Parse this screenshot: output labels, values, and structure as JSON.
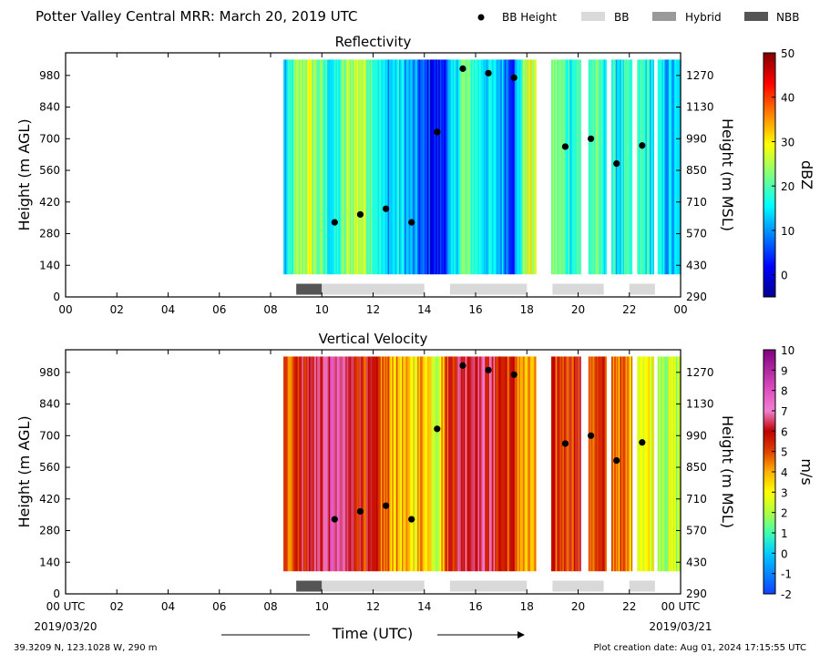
{
  "header": {
    "title": "Potter Valley Central MRR:  March 20, 2019 UTC",
    "legend": [
      {
        "label": "BB Height",
        "kind": "dot",
        "color": "#000000"
      },
      {
        "label": "BB",
        "kind": "swatch",
        "color": "#d9d9d9"
      },
      {
        "label": "Hybrid",
        "kind": "swatch",
        "color": "#999999"
      },
      {
        "label": "NBB",
        "kind": "swatch",
        "color": "#555555"
      }
    ]
  },
  "footer": {
    "xlabel": "Time (UTC)",
    "left_text": "39.3209 N, 123.1028 W, 290 m",
    "right_text": "Plot creation date: Aug 01, 2024 17:15:55 UTC",
    "start_date": "2019/03/20",
    "end_date": "2019/03/21"
  },
  "chart_data": [
    {
      "type": "heatmap",
      "title": "Reflectivity",
      "ylabel": "Height (m AGL)",
      "ylabel_right": "Height (m MSL)",
      "colorbar_label": "dBZ",
      "colorbar_ticks": [
        "0",
        "10",
        "20",
        "30",
        "40",
        "50"
      ],
      "clim": [
        -5,
        50
      ],
      "colormap": "jet",
      "xlim": [
        0,
        24
      ],
      "ylim": [
        0,
        1080
      ],
      "xticks": [
        "00",
        "02",
        "04",
        "06",
        "08",
        "10",
        "12",
        "14",
        "16",
        "18",
        "20",
        "22",
        "00"
      ],
      "yticks": [
        0,
        140,
        280,
        420,
        560,
        700,
        840,
        980
      ],
      "yticks_right": [
        290,
        430,
        570,
        710,
        850,
        990,
        1130,
        1270
      ],
      "data_height_range": [
        100,
        1050
      ],
      "data_segments": [
        [
          8.5,
          18.35
        ],
        [
          18.95,
          20.1
        ],
        [
          20.4,
          21.1
        ],
        [
          21.3,
          22.1
        ],
        [
          22.3,
          22.95
        ],
        [
          23.1,
          24
        ]
      ],
      "column_values": [
        {
          "t": 8.6,
          "v": 12
        },
        {
          "t": 9.0,
          "v": 22
        },
        {
          "t": 9.5,
          "v": 27
        },
        {
          "t": 10.0,
          "v": 20
        },
        {
          "t": 10.5,
          "v": 14
        },
        {
          "t": 11.0,
          "v": 24
        },
        {
          "t": 11.5,
          "v": 27
        },
        {
          "t": 12.0,
          "v": 21
        },
        {
          "t": 12.5,
          "v": 12
        },
        {
          "t": 13.0,
          "v": 15
        },
        {
          "t": 13.5,
          "v": 10
        },
        {
          "t": 14.0,
          "v": 5
        },
        {
          "t": 14.5,
          "v": 1
        },
        {
          "t": 14.95,
          "v": 8
        },
        {
          "t": 15.5,
          "v": 22
        },
        {
          "t": 16.0,
          "v": 18
        },
        {
          "t": 16.5,
          "v": 14
        },
        {
          "t": 17.0,
          "v": 12
        },
        {
          "t": 17.5,
          "v": 6
        },
        {
          "t": 18.0,
          "v": 28
        },
        {
          "t": 19.2,
          "v": 22
        },
        {
          "t": 19.7,
          "v": 18
        },
        {
          "t": 20.6,
          "v": 20
        },
        {
          "t": 21.5,
          "v": 15
        },
        {
          "t": 22.5,
          "v": 18
        },
        {
          "t": 23.5,
          "v": 12
        }
      ],
      "bb_height": [
        {
          "x": 10.5,
          "y": 330
        },
        {
          "x": 11.5,
          "y": 365
        },
        {
          "x": 12.5,
          "y": 390
        },
        {
          "x": 13.5,
          "y": 330
        },
        {
          "x": 14.5,
          "y": 730
        },
        {
          "x": 15.5,
          "y": 1010
        },
        {
          "x": 16.5,
          "y": 990
        },
        {
          "x": 17.5,
          "y": 970
        },
        {
          "x": 19.5,
          "y": 665
        },
        {
          "x": 20.5,
          "y": 700
        },
        {
          "x": 21.5,
          "y": 590
        },
        {
          "x": 22.5,
          "y": 670
        }
      ],
      "bb_type_bars": [
        {
          "start": 9.0,
          "end": 10.0,
          "type": "NBB"
        },
        {
          "start": 10.0,
          "end": 14.0,
          "type": "BB"
        },
        {
          "start": 15.0,
          "end": 18.0,
          "type": "BB"
        },
        {
          "start": 19.0,
          "end": 21.0,
          "type": "BB"
        },
        {
          "start": 22.0,
          "end": 23.0,
          "type": "BB"
        }
      ]
    },
    {
      "type": "heatmap",
      "title": "Vertical Velocity",
      "ylabel": "Height (m AGL)",
      "ylabel_right": "Height (m MSL)",
      "colorbar_label": "m/s",
      "colorbar_ticks": [
        "-2",
        "-1",
        "0",
        "1",
        "2",
        "3",
        "4",
        "5",
        "6",
        "7",
        "8",
        "9",
        "10"
      ],
      "clim": [
        -2,
        10
      ],
      "colormap": "velocity",
      "xlim": [
        0,
        24
      ],
      "ylim": [
        0,
        1080
      ],
      "xticks": [
        "00 UTC",
        "02",
        "04",
        "06",
        "08",
        "10",
        "12",
        "14",
        "16",
        "18",
        "20",
        "22",
        "00 UTC"
      ],
      "yticks": [
        0,
        140,
        280,
        420,
        560,
        700,
        840,
        980
      ],
      "yticks_right": [
        290,
        430,
        570,
        710,
        850,
        990,
        1130,
        1270
      ],
      "data_height_range": [
        100,
        1050
      ],
      "data_segments": [
        [
          8.5,
          18.35
        ],
        [
          18.95,
          20.1
        ],
        [
          20.4,
          21.1
        ],
        [
          21.3,
          22.1
        ],
        [
          22.3,
          22.95
        ],
        [
          23.1,
          24
        ]
      ],
      "column_values": [
        {
          "t": 8.6,
          "v": 4.5
        },
        {
          "t": 9.0,
          "v": 5.8
        },
        {
          "t": 9.5,
          "v": 6.0
        },
        {
          "t": 10.0,
          "v": 6.6
        },
        {
          "t": 10.5,
          "v": 7.2
        },
        {
          "t": 11.0,
          "v": 6.2
        },
        {
          "t": 11.5,
          "v": 5.8
        },
        {
          "t": 12.0,
          "v": 5.2
        },
        {
          "t": 12.5,
          "v": 4.5
        },
        {
          "t": 13.0,
          "v": 3.8
        },
        {
          "t": 13.5,
          "v": 3.2
        },
        {
          "t": 14.0,
          "v": 4.2
        },
        {
          "t": 14.5,
          "v": 2.5
        },
        {
          "t": 14.95,
          "v": 5.7
        },
        {
          "t": 15.5,
          "v": 6.3
        },
        {
          "t": 16.0,
          "v": 6.8
        },
        {
          "t": 16.5,
          "v": 6.2
        },
        {
          "t": 17.0,
          "v": 5.6
        },
        {
          "t": 17.5,
          "v": 5.2
        },
        {
          "t": 18.0,
          "v": 3.5
        },
        {
          "t": 19.2,
          "v": 5.2
        },
        {
          "t": 19.7,
          "v": 5.6
        },
        {
          "t": 20.6,
          "v": 5.0
        },
        {
          "t": 21.5,
          "v": 4.8
        },
        {
          "t": 22.5,
          "v": 3.2
        },
        {
          "t": 23.5,
          "v": 2.2
        }
      ],
      "bb_height": [
        {
          "x": 10.5,
          "y": 330
        },
        {
          "x": 11.5,
          "y": 365
        },
        {
          "x": 12.5,
          "y": 390
        },
        {
          "x": 13.5,
          "y": 330
        },
        {
          "x": 14.5,
          "y": 730
        },
        {
          "x": 15.5,
          "y": 1010
        },
        {
          "x": 16.5,
          "y": 990
        },
        {
          "x": 17.5,
          "y": 970
        },
        {
          "x": 19.5,
          "y": 665
        },
        {
          "x": 20.5,
          "y": 700
        },
        {
          "x": 21.5,
          "y": 590
        },
        {
          "x": 22.5,
          "y": 670
        }
      ],
      "bb_type_bars": [
        {
          "start": 9.0,
          "end": 10.0,
          "type": "NBB"
        },
        {
          "start": 10.0,
          "end": 14.0,
          "type": "BB"
        },
        {
          "start": 15.0,
          "end": 18.0,
          "type": "BB"
        },
        {
          "start": 19.0,
          "end": 21.0,
          "type": "BB"
        },
        {
          "start": 22.0,
          "end": 23.0,
          "type": "BB"
        }
      ]
    }
  ]
}
